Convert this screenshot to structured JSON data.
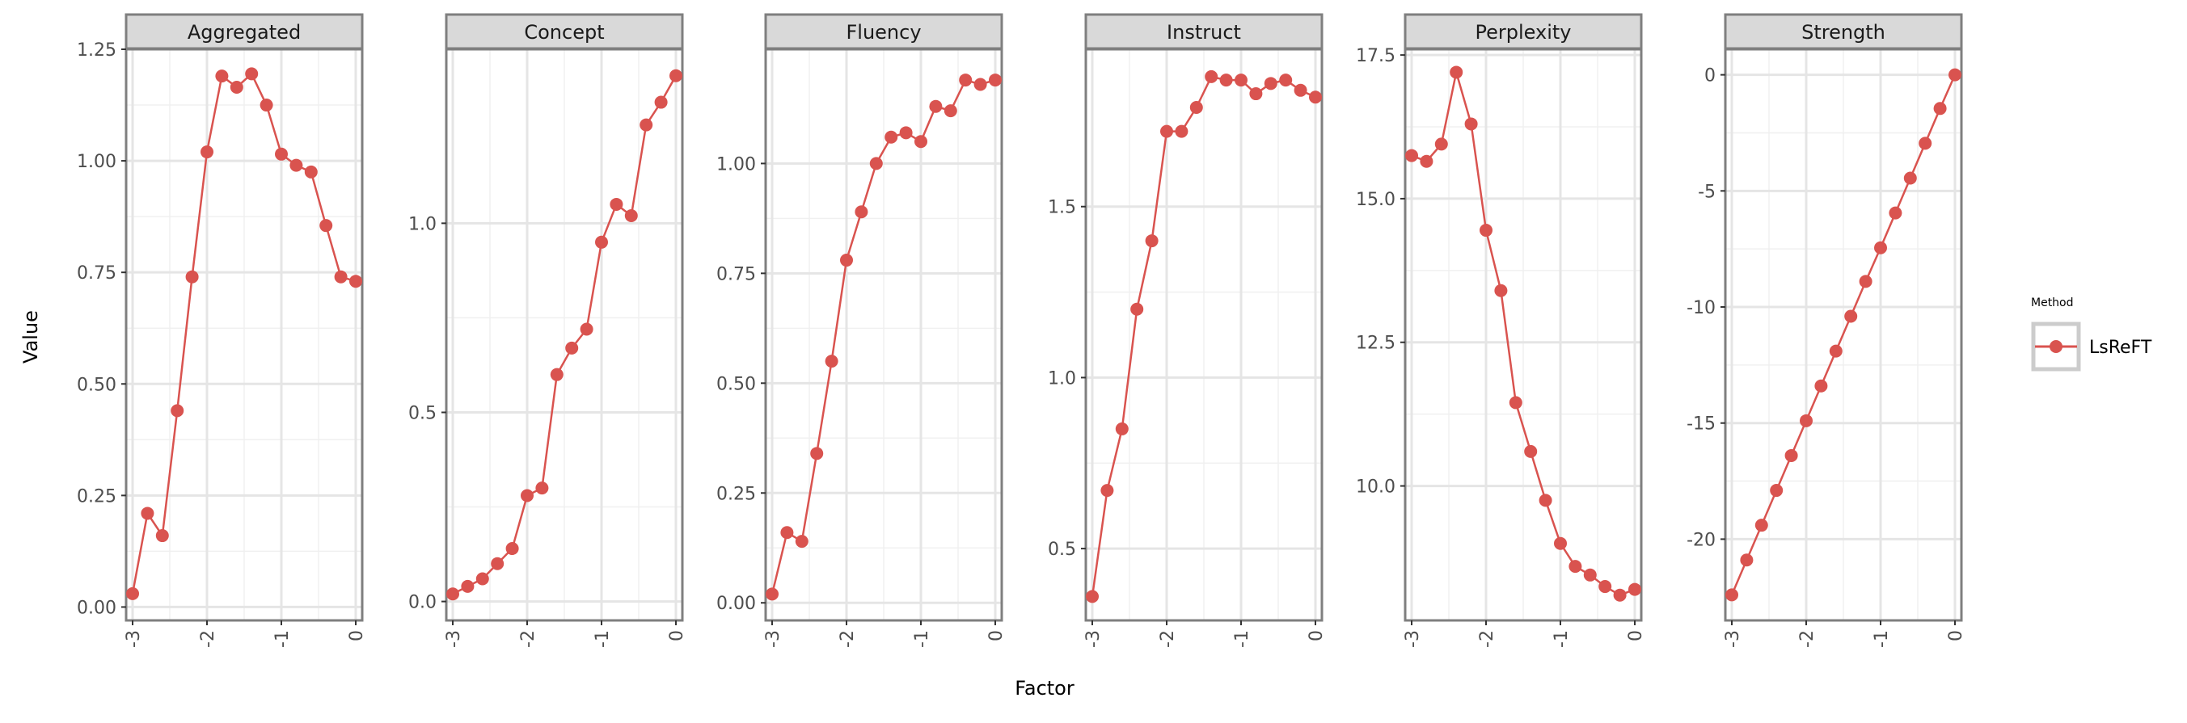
{
  "chart_data": {
    "type": "line",
    "xlabel": "Factor",
    "ylabel": "Value",
    "x": [
      -3.0,
      -2.8,
      -2.6,
      -2.4,
      -2.2,
      -2.0,
      -1.8,
      -1.6,
      -1.4,
      -1.2,
      -1.0,
      -0.8,
      -0.6,
      -0.4,
      -0.2,
      0.0
    ],
    "x_ticks": [
      -3,
      -2,
      -1,
      0
    ],
    "x_tick_labels": [
      "-3",
      "-2",
      "-1",
      "0"
    ],
    "xlim": [
      -3.0,
      0.0
    ],
    "grid": true,
    "legend": {
      "title": "Method",
      "position": "right",
      "entries": [
        {
          "name": "LsReFT",
          "color": "#d9534f"
        }
      ]
    },
    "series_color": "#d9534f",
    "panels": [
      {
        "name": "Aggregated",
        "values": [
          0.03,
          0.21,
          0.16,
          0.44,
          0.74,
          1.02,
          1.19,
          1.165,
          1.195,
          1.125,
          1.015,
          0.99,
          0.975,
          0.855,
          0.74,
          0.73
        ],
        "ylim": [
          -0.03,
          1.25
        ],
        "y_ticks": [
          0.0,
          0.25,
          0.5,
          0.75,
          1.0,
          1.25
        ],
        "y_tick_labels": [
          "0.00",
          "0.25",
          "0.50",
          "0.75",
          "1.00",
          "1.25"
        ]
      },
      {
        "name": "Concept",
        "values": [
          0.02,
          0.04,
          0.06,
          0.1,
          0.14,
          0.28,
          0.3,
          0.6,
          0.67,
          0.72,
          0.95,
          1.05,
          1.02,
          1.26,
          1.32,
          1.39
        ],
        "ylim": [
          -0.05,
          1.46
        ],
        "y_ticks": [
          0.0,
          0.5,
          1.0
        ],
        "y_tick_labels": [
          "0.0",
          "0.5",
          "1.0"
        ]
      },
      {
        "name": "Fluency",
        "values": [
          0.02,
          0.16,
          0.14,
          0.34,
          0.55,
          0.78,
          0.89,
          1.0,
          1.06,
          1.07,
          1.05,
          1.13,
          1.12,
          1.19,
          1.18,
          1.19
        ],
        "ylim": [
          -0.04,
          1.26
        ],
        "y_ticks": [
          0.0,
          0.25,
          0.5,
          0.75,
          1.0
        ],
        "y_tick_labels": [
          "0.00",
          "0.25",
          "0.50",
          "0.75",
          "1.00"
        ]
      },
      {
        "name": "Instruct",
        "values": [
          0.36,
          0.67,
          0.85,
          1.2,
          1.4,
          1.72,
          1.72,
          1.79,
          1.88,
          1.87,
          1.87,
          1.83,
          1.86,
          1.87,
          1.84,
          1.82
        ],
        "ylim": [
          0.29,
          1.96
        ],
        "y_ticks": [
          0.5,
          1.0,
          1.5
        ],
        "y_tick_labels": [
          "0.5",
          "1.0",
          "1.5"
        ]
      },
      {
        "name": "Perplexity",
        "values": [
          15.75,
          15.65,
          15.95,
          17.2,
          16.3,
          14.45,
          13.4,
          11.45,
          10.6,
          9.75,
          9.0,
          8.6,
          8.45,
          8.25,
          8.1,
          8.2
        ],
        "ylim": [
          7.66,
          17.6
        ],
        "y_ticks": [
          10.0,
          12.5,
          15.0,
          17.5
        ],
        "y_tick_labels": [
          "10.0",
          "12.5",
          "15.0",
          "17.5"
        ]
      },
      {
        "name": "Strength",
        "values": [
          -22.4,
          -20.9,
          -19.4,
          -17.9,
          -16.4,
          -14.9,
          -13.4,
          -11.9,
          -10.4,
          -8.9,
          -7.45,
          -5.95,
          -4.45,
          -2.95,
          -1.45,
          0.0
        ],
        "ylim": [
          -23.5,
          1.1
        ],
        "y_ticks": [
          0,
          -5,
          -10,
          -15,
          -20
        ],
        "y_tick_labels": [
          "0",
          "-5",
          "-10",
          "-15",
          "-20"
        ]
      }
    ]
  }
}
